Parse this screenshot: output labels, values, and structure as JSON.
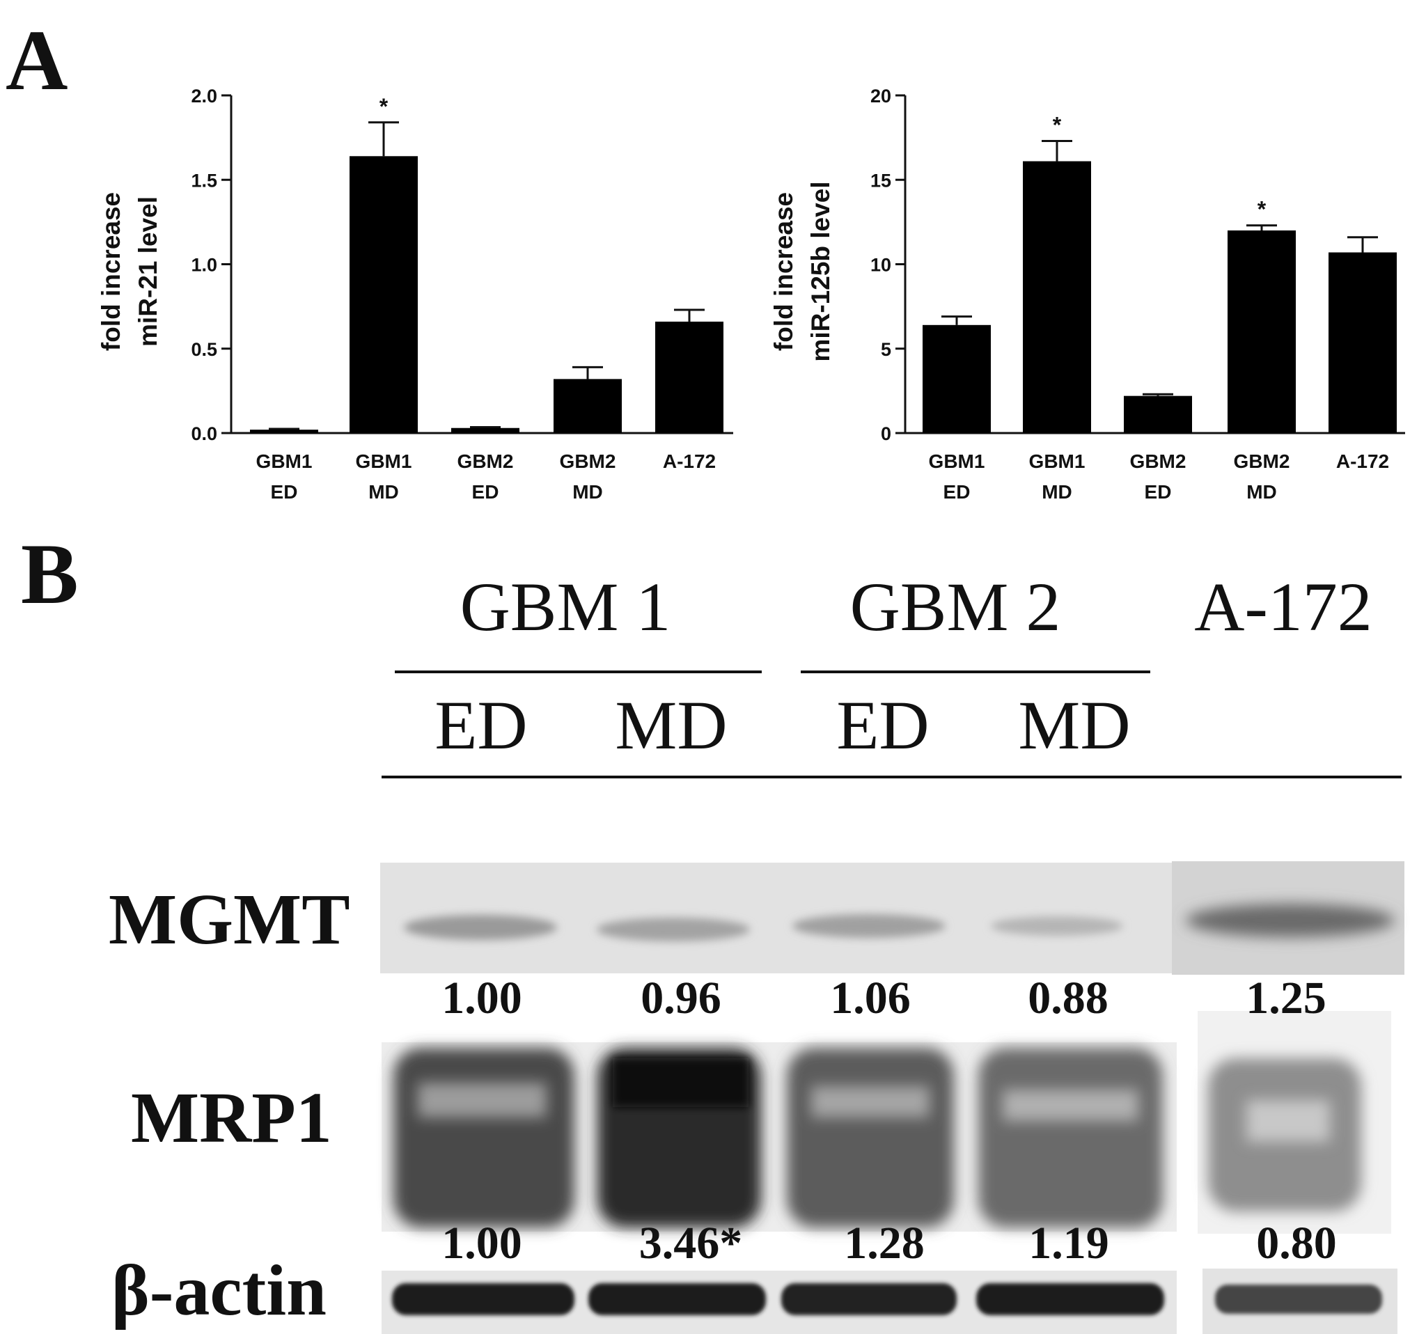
{
  "panel_a_letter": "A",
  "panel_b_letter": "B",
  "chart_data": [
    {
      "type": "bar",
      "title": "",
      "ylabel": [
        "fold increase",
        "miR-21 level"
      ],
      "categories": [
        [
          "GBM1",
          "ED"
        ],
        [
          "GBM1",
          "MD"
        ],
        [
          "GBM2",
          "ED"
        ],
        [
          "GBM2",
          "MD"
        ],
        [
          "A-172"
        ]
      ],
      "values": [
        0.02,
        1.64,
        0.03,
        0.32,
        0.66
      ],
      "errors": [
        0.005,
        0.2,
        0.005,
        0.07,
        0.07
      ],
      "significance": [
        "",
        "*",
        "",
        "",
        ""
      ],
      "ylim": [
        0,
        2.0
      ],
      "yticks": [
        "0.0",
        "0.5",
        "1.0",
        "1.5",
        "2.0"
      ],
      "grid": false,
      "legend": "none"
    },
    {
      "type": "bar",
      "title": "",
      "ylabel": [
        "fold increase",
        "miR-125b level"
      ],
      "categories": [
        [
          "GBM1",
          "ED"
        ],
        [
          "GBM1",
          "MD"
        ],
        [
          "GBM2",
          "ED"
        ],
        [
          "GBM2",
          "MD"
        ],
        [
          "A-172"
        ]
      ],
      "values": [
        6.4,
        16.1,
        2.2,
        12.0,
        10.7
      ],
      "errors": [
        0.5,
        1.2,
        0.1,
        0.3,
        0.9
      ],
      "significance": [
        "",
        "*",
        "",
        "*",
        ""
      ],
      "ylim": [
        0,
        20
      ],
      "yticks": [
        "0",
        "5",
        "10",
        "15",
        "20"
      ],
      "grid": false,
      "legend": "none"
    }
  ],
  "blot": {
    "groups": [
      "GBM 1",
      "GBM 2",
      "A-172"
    ],
    "conditions": [
      "ED",
      "MD",
      "ED",
      "MD"
    ],
    "rows": [
      {
        "label": "MGMT",
        "values": [
          "1.00",
          "0.96",
          "1.06",
          "0.88",
          "1.25"
        ]
      },
      {
        "label": "MRP1",
        "values": [
          "1.00",
          "3.46*",
          "1.28",
          "1.19",
          "0.80"
        ]
      },
      {
        "label": "β-actin",
        "values": []
      }
    ]
  }
}
